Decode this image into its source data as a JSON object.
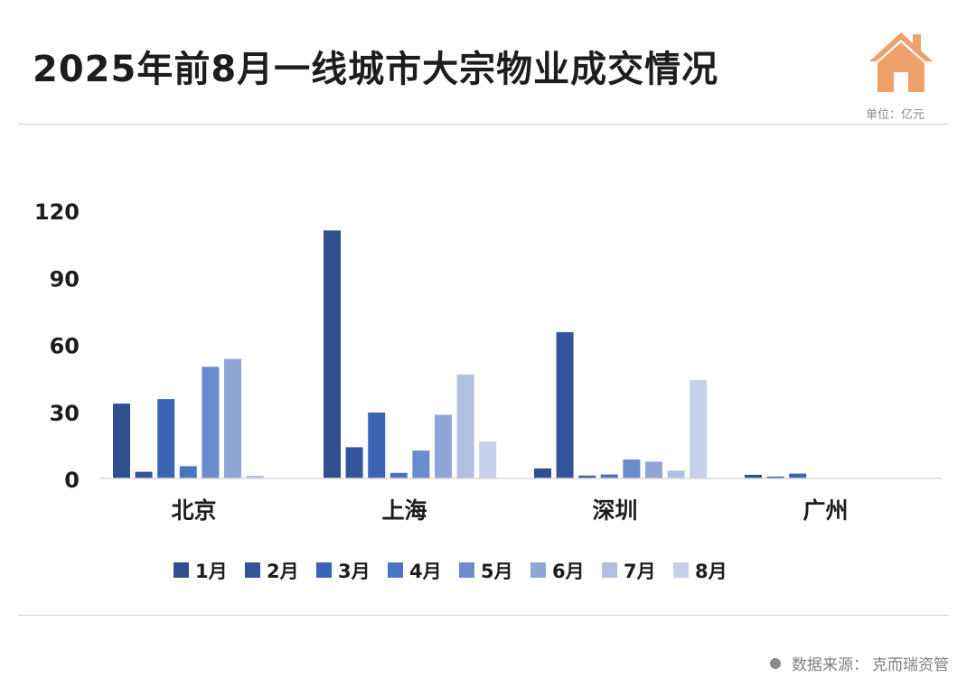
{
  "header": {
    "title": "2025年前8月一线城市大宗物业成交情况",
    "unit": "单位：亿元",
    "logo_icon": "house-icon",
    "accent_color": "#F0A06A"
  },
  "footer": {
    "source_label": "数据来源：",
    "source_name": "克而瑞资管"
  },
  "chart_data": {
    "type": "bar",
    "title": "2025年前8月一线城市大宗物业成交情况",
    "xlabel": "",
    "ylabel": "",
    "ylim": [
      0,
      120
    ],
    "yticks": [
      0,
      30,
      60,
      90,
      120
    ],
    "grid": false,
    "legend": "bottom",
    "categories": [
      "北京",
      "上海",
      "深圳",
      "广州"
    ],
    "series": [
      {
        "name": "1月",
        "color": "#2F4F8F",
        "values": [
          33.5,
          111,
          4.5,
          1.6
        ]
      },
      {
        "name": "2月",
        "color": "#34559A",
        "values": [
          3,
          14,
          65.5,
          0.8
        ]
      },
      {
        "name": "3月",
        "color": "#3B64B5",
        "values": [
          35.5,
          29.5,
          1.3,
          2.2
        ]
      },
      {
        "name": "4月",
        "color": "#4A74C4",
        "values": [
          5.5,
          2.5,
          1.8,
          0
        ]
      },
      {
        "name": "5月",
        "color": "#6A8BCC",
        "values": [
          50,
          12.5,
          8.5,
          0
        ]
      },
      {
        "name": "6月",
        "color": "#90A6D6",
        "values": [
          53.5,
          28.5,
          7.5,
          0
        ]
      },
      {
        "name": "7月",
        "color": "#B1BFE1",
        "values": [
          1.2,
          46.5,
          3.5,
          0
        ]
      },
      {
        "name": "8月",
        "color": "#C7D0EA",
        "values": [
          0,
          16.5,
          44,
          0
        ]
      }
    ]
  }
}
